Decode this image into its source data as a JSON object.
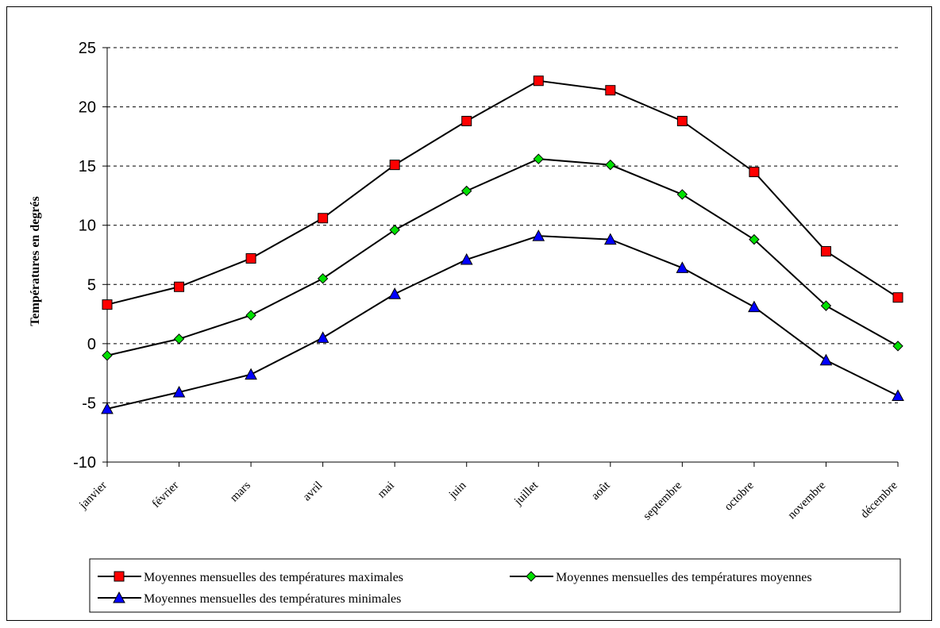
{
  "chart_data": {
    "type": "line",
    "categories": [
      "janvier",
      "février",
      "mars",
      "avril",
      "mai",
      "juin",
      "juillet",
      "août",
      "septembre",
      "octobre",
      "novembre",
      "décembre"
    ],
    "series": [
      {
        "name": "Moyennes mensuelles des températures maximales",
        "marker": "square",
        "color": "#ff0000",
        "values": [
          3.3,
          4.8,
          7.2,
          10.6,
          15.1,
          18.8,
          22.2,
          21.4,
          18.8,
          14.5,
          7.8,
          3.9
        ]
      },
      {
        "name": "Moyennes mensuelles des températures moyennes",
        "marker": "diamond",
        "color": "#00e000",
        "values": [
          -1.0,
          0.4,
          2.4,
          5.5,
          9.6,
          12.9,
          15.6,
          15.1,
          12.6,
          8.8,
          3.2,
          -0.2
        ]
      },
      {
        "name": "Moyennes mensuelles des températures minimales",
        "marker": "triangle",
        "color": "#0000ff",
        "values": [
          -5.5,
          -4.1,
          -2.6,
          0.5,
          4.2,
          7.1,
          9.1,
          8.8,
          6.4,
          3.1,
          -1.4,
          -4.4
        ]
      }
    ],
    "title": "",
    "xlabel": "",
    "ylabel": "Températures en degrés",
    "ylim": [
      -10,
      25
    ],
    "yticks": [
      "-10",
      "-5",
      "0",
      "5",
      "10",
      "15",
      "20",
      "25"
    ],
    "grid": "horizontal dashed",
    "legend_position": "bottom"
  }
}
